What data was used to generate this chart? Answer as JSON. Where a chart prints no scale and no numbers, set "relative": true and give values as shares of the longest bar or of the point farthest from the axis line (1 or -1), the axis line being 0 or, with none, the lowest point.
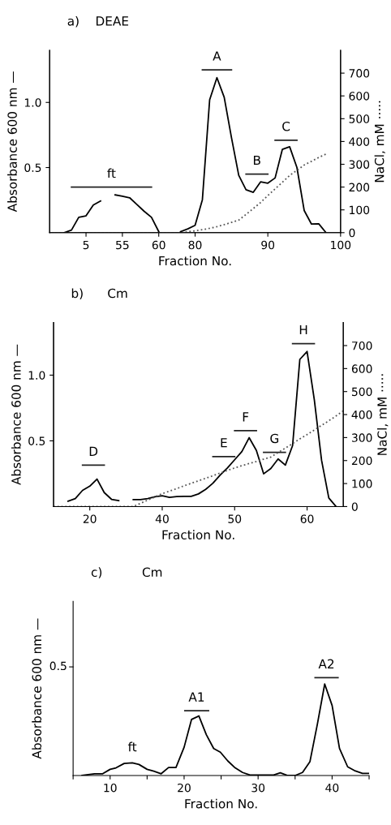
{
  "chart_data": [
    {
      "type": "line",
      "title": "a)    DEAE",
      "xlabel": "Fraction No.",
      "ylabel": "Absorbance 600 nm —",
      "y2label": "NaCl, mM ·····",
      "categories": [
        null,
        null,
        null,
        null,
        null,
        "5",
        null,
        null,
        null,
        null,
        "55",
        null,
        null,
        null,
        null,
        "60",
        null,
        null,
        null,
        null,
        "80",
        null,
        null,
        null,
        null,
        null,
        null,
        null,
        null,
        null,
        "90",
        null,
        null,
        null,
        null,
        null,
        null,
        null,
        null,
        null,
        "100"
      ],
      "ylim": [
        0,
        1.4
      ],
      "yticks": [
        0.5,
        {
          "value": 1.0,
          "label": "1.0"
        }
      ],
      "y2lim": [
        0,
        800
      ],
      "y2ticks": [
        0,
        100,
        200,
        300,
        400,
        500,
        600,
        700
      ],
      "series": [
        {
          "type": "line",
          "color": "#000000",
          "line_style": "solid",
          "values": [
            null,
            null,
            0,
            0.02,
            0.118,
            0.129,
            0.212,
            0.243,
            null,
            0.29,
            0.28,
            0.268,
            0.216,
            0.164,
            0.118,
            0.008,
            null,
            null,
            0.008,
            0.029,
            0.056,
            0.253,
            1.02,
            1.19,
            1.04,
            0.73,
            0.44,
            0.33,
            0.31,
            0.39,
            0.38,
            0.42,
            0.64,
            0.66,
            0.5,
            0.17,
            0.066,
            0.068,
            0,
            null,
            null
          ]
        },
        {
          "type": "line",
          "color": "#555555",
          "line_style": "dotted",
          "axis": "y2",
          "values": [
            0,
            0,
            0,
            0,
            0,
            0,
            0,
            0,
            0,
            0,
            0,
            0,
            0,
            0,
            0,
            0,
            0,
            0,
            0,
            4,
            8,
            13,
            19,
            26,
            35,
            45,
            55,
            80,
            106,
            132,
            163,
            192,
            221,
            251,
            273,
            297,
            313,
            330,
            345,
            null,
            null
          ]
        },
        {
          "type": "line",
          "name": "ft",
          "color": "#222222",
          "line_style": "solid",
          "values": [
            null,
            null,
            null,
            0.35,
            0.35,
            0.35,
            0.35,
            0.35,
            0.35,
            0.35,
            0.35,
            0.35,
            0.35,
            0.35,
            0.35,
            null,
            null,
            null,
            null,
            null,
            null,
            null,
            null,
            null,
            null,
            null,
            null,
            null,
            null,
            null,
            null,
            null,
            null,
            null,
            null,
            null,
            null,
            null,
            null,
            null,
            null
          ]
        },
        {
          "type": "line",
          "name": "A",
          "color": "#222222",
          "line_style": "solid",
          "values": [
            null,
            null,
            null,
            null,
            null,
            null,
            null,
            null,
            null,
            null,
            null,
            null,
            null,
            null,
            null,
            null,
            null,
            null,
            null,
            null,
            null,
            1.25,
            1.25,
            1.25,
            1.25,
            1.25,
            null,
            null,
            null,
            null,
            null,
            null,
            null,
            null,
            null,
            null,
            null,
            null,
            null,
            null,
            null
          ]
        },
        {
          "type": "line",
          "name": "B",
          "color": "#222222",
          "line_style": "solid",
          "values": [
            null,
            null,
            null,
            null,
            null,
            null,
            null,
            null,
            null,
            null,
            null,
            null,
            null,
            null,
            null,
            null,
            null,
            null,
            null,
            null,
            null,
            null,
            null,
            null,
            null,
            null,
            null,
            0.45,
            0.45,
            0.45,
            0.45,
            null,
            null,
            null,
            null,
            null,
            null,
            null,
            null,
            null,
            null
          ]
        },
        {
          "type": "line",
          "name": "C",
          "color": "#222222",
          "line_style": "solid",
          "values": [
            null,
            null,
            null,
            null,
            null,
            null,
            null,
            null,
            null,
            null,
            null,
            null,
            null,
            null,
            null,
            null,
            null,
            null,
            null,
            null,
            null,
            null,
            null,
            null,
            null,
            null,
            null,
            null,
            null,
            null,
            null,
            0.71,
            0.71,
            0.71,
            0.71,
            null,
            null,
            null,
            null,
            null,
            null
          ]
        }
      ]
    },
    {
      "type": "line",
      "title": "b)      Cm",
      "xlabel": "Fraction No.",
      "ylabel": "Absorbance 600 nm —",
      "y2label": "NaCl, mM ·····",
      "categories": [
        null,
        null,
        null,
        null,
        null,
        "20",
        null,
        null,
        null,
        null,
        null,
        null,
        null,
        null,
        null,
        "40",
        null,
        null,
        null,
        null,
        null,
        null,
        null,
        null,
        null,
        "50",
        null,
        null,
        null,
        null,
        null,
        null,
        null,
        null,
        null,
        "60",
        null,
        null,
        null,
        null,
        null
      ],
      "ylim": [
        0,
        1.4
      ],
      "yticks": [
        0.5,
        {
          "value": 1.0,
          "label": "1.0"
        }
      ],
      "y2lim": [
        0,
        800
      ],
      "y2ticks": [
        0,
        100,
        200,
        300,
        400,
        500,
        600,
        700
      ],
      "series": [
        {
          "type": "line",
          "color": "#000000",
          "line_style": "solid",
          "values": [
            null,
            null,
            0.041,
            0.061,
            0.123,
            0.155,
            0.209,
            0.106,
            0.055,
            0.045,
            null,
            0.053,
            0.053,
            0.061,
            0.074,
            0.082,
            0.07,
            0.076,
            0.078,
            0.078,
            0.096,
            0.131,
            0.178,
            0.24,
            0.294,
            0.356,
            0.419,
            0.524,
            0.427,
            0.249,
            0.29,
            0.362,
            0.315,
            0.464,
            1.12,
            1.18,
            0.812,
            0.352,
            0.065,
            0,
            null
          ]
        },
        {
          "type": "line",
          "color": "#555555",
          "line_style": "dotted",
          "axis": "y2",
          "values": [
            0,
            0,
            0,
            0,
            0,
            0,
            0,
            0,
            0,
            0,
            0,
            0,
            14,
            28,
            42,
            56,
            67,
            78,
            90,
            101,
            112,
            123,
            134,
            146,
            157,
            168,
            178,
            187,
            196,
            206,
            215,
            235,
            254,
            274,
            294,
            313,
            333,
            353,
            373,
            394,
            416
          ]
        },
        {
          "type": "line",
          "name": "D",
          "color": "#222222",
          "line_style": "solid",
          "values": [
            null,
            null,
            null,
            null,
            0.315,
            0.315,
            0.315,
            0.315,
            null,
            null,
            null,
            null,
            null,
            null,
            null,
            null,
            null,
            null,
            null,
            null,
            null,
            null,
            null,
            null,
            null,
            null,
            null,
            null,
            null,
            null,
            null,
            null,
            null,
            null,
            null,
            null,
            null,
            null,
            null,
            null,
            null
          ]
        },
        {
          "type": "line",
          "name": "E",
          "color": "#222222",
          "line_style": "solid",
          "values": [
            null,
            null,
            null,
            null,
            null,
            null,
            null,
            null,
            null,
            null,
            null,
            null,
            null,
            null,
            null,
            null,
            null,
            null,
            null,
            null,
            null,
            null,
            0.38,
            0.38,
            0.38,
            0.38,
            null,
            null,
            null,
            null,
            null,
            null,
            null,
            null,
            null,
            null,
            null,
            null,
            null,
            null,
            null
          ]
        },
        {
          "type": "line",
          "name": "F",
          "color": "#222222",
          "line_style": "solid",
          "values": [
            null,
            null,
            null,
            null,
            null,
            null,
            null,
            null,
            null,
            null,
            null,
            null,
            null,
            null,
            null,
            null,
            null,
            null,
            null,
            null,
            null,
            null,
            null,
            null,
            null,
            0.577,
            0.577,
            0.577,
            0.577,
            null,
            null,
            null,
            null,
            null,
            null,
            null,
            null,
            null,
            null,
            null,
            null
          ]
        },
        {
          "type": "line",
          "name": "G",
          "color": "#222222",
          "line_style": "solid",
          "values": [
            null,
            null,
            null,
            null,
            null,
            null,
            null,
            null,
            null,
            null,
            null,
            null,
            null,
            null,
            null,
            null,
            null,
            null,
            null,
            null,
            null,
            null,
            null,
            null,
            null,
            null,
            null,
            null,
            null,
            0.413,
            0.413,
            0.413,
            0.413,
            null,
            null,
            null,
            null,
            null,
            null,
            null,
            null
          ]
        },
        {
          "type": "line",
          "name": "H",
          "color": "#222222",
          "line_style": "solid",
          "values": [
            null,
            null,
            null,
            null,
            null,
            null,
            null,
            null,
            null,
            null,
            null,
            null,
            null,
            null,
            null,
            null,
            null,
            null,
            null,
            null,
            null,
            null,
            null,
            null,
            null,
            null,
            null,
            null,
            null,
            null,
            null,
            null,
            null,
            1.24,
            1.24,
            1.24,
            1.24,
            null,
            null,
            null,
            null
          ]
        }
      ]
    },
    {
      "type": "line",
      "title": "c)          Cm",
      "xlabel": "Fraction No.",
      "ylabel": "Absorbance 600 nm —",
      "relative": true,
      "xlim": [
        5,
        45
      ],
      "xticks": [
        {
          "value": 5,
          "label": null
        },
        10,
        {
          "value": 15,
          "label": null
        },
        20,
        {
          "value": 25,
          "label": null
        },
        30,
        {
          "value": 35,
          "label": null
        },
        40,
        {
          "value": 45,
          "label": null
        }
      ],
      "series": [
        {
          "type": "line",
          "color": "#000000",
          "line_style": "solid",
          "x": [
            6.2,
            7.9,
            9.0,
            10,
            10.8,
            11.9,
            13.0,
            13.9,
            15.0,
            15.9,
            16.9,
            17.9,
            18.9,
            20,
            21.0,
            22.0,
            23.0,
            24.0,
            24.9,
            25.9,
            26.9,
            27.9,
            28.9,
            32.1,
            33.0,
            34.0,
            35.0,
            36.0,
            37.0,
            38.0,
            39.0,
            40,
            41.0,
            42.1,
            43.0,
            44.1,
            45
          ],
          "values": [
            0,
            0.018,
            0.018,
            0.063,
            0.078,
            0.123,
            0.129,
            0.113,
            0.063,
            0.045,
            0.018,
            0.082,
            0.082,
            0.289,
            0.573,
            0.609,
            0.418,
            0.276,
            0.238,
            0.149,
            0.078,
            0.031,
            0.005,
            0.005,
            0.027,
            0,
            0,
            0.031,
            0.14,
            0.522,
            0.935,
            0.716,
            0.276,
            0.089,
            0.051,
            0.022,
            0.022
          ]
        },
        {
          "type": "line",
          "name": "A1",
          "color": "#222222",
          "line_style": "solid",
          "x": [
            20.1,
            23.3
          ],
          "values": [
            0.662,
            0.662
          ]
        },
        {
          "type": "line",
          "name": "A2",
          "color": "#222222",
          "line_style": "solid",
          "x": [
            37.7,
            40.8
          ],
          "values": [
            1,
            1
          ]
        }
      ],
      "annotations": [
        {
          "text": "ft",
          "x": 13.0,
          "y": 0.129
        },
        "0.5"
      ]
    }
  ]
}
